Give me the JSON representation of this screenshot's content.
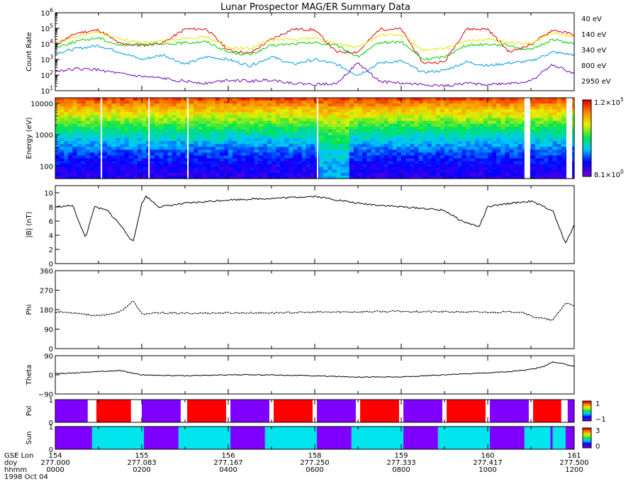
{
  "title": "Lunar Prospector MAG/ER Summary Data",
  "footer_date": "1998 Oct 04",
  "footer_rows": [
    {
      "label": "GSE Lon",
      "values": [
        "154",
        "155",
        "156",
        "158",
        "159",
        "160",
        "161"
      ]
    },
    {
      "label": "doy",
      "values": [
        "277.000",
        "277.083",
        "277.167",
        "277.250",
        "277.333",
        "277.417",
        "277.500"
      ]
    },
    {
      "label": "hhmm",
      "values": [
        "0000",
        "0200",
        "0400",
        "0600",
        "0800",
        "1000",
        "1200"
      ]
    }
  ],
  "chart_data": [
    {
      "id": "count-rate",
      "type": "line",
      "ylabel": "Count Rate",
      "yscale": "log",
      "ylim": [
        10,
        1000000
      ],
      "yticks": [
        {
          "v": 10,
          "t": "10",
          "e": "1"
        },
        {
          "v": 100,
          "t": "10",
          "e": "2"
        },
        {
          "v": 1000,
          "t": "10",
          "e": "3"
        },
        {
          "v": 10000,
          "t": "10",
          "e": "4"
        },
        {
          "v": 100000,
          "t": "10",
          "e": "5"
        },
        {
          "v": 1000000,
          "t": "10",
          "e": "6"
        }
      ],
      "x": [
        0,
        0.5,
        1.0,
        1.5,
        2.0,
        2.5,
        3.0,
        3.5,
        4.0,
        4.5,
        5.0,
        5.5,
        6.0,
        6.5,
        7.0,
        7.5,
        8.0,
        8.5,
        9.0,
        9.5,
        10.0,
        10.5,
        11.0,
        11.5,
        12.0
      ],
      "series": [
        {
          "name": "40 eV",
          "color": "#e00000",
          "values": [
            9000,
            50000,
            80000,
            10000,
            8000,
            12000,
            90000,
            90000,
            4000,
            2500,
            20000,
            90000,
            80000,
            3000,
            3000,
            90000,
            90000,
            600,
            700,
            90000,
            90000,
            3000,
            9000,
            80000,
            40000
          ]
        },
        {
          "name": "140 eV",
          "color": "#e6e600",
          "values": [
            12000,
            30000,
            60000,
            20000,
            12000,
            15000,
            25000,
            28000,
            6000,
            5000,
            18000,
            20000,
            25000,
            10000,
            6000,
            35000,
            40000,
            4000,
            5000,
            15000,
            20000,
            12000,
            10000,
            50000,
            30000
          ]
        },
        {
          "name": "340 eV",
          "color": "#00cc00",
          "values": [
            6000,
            15000,
            25000,
            8000,
            10000,
            9000,
            12000,
            14000,
            3000,
            2000,
            8000,
            10000,
            12000,
            8000,
            1500,
            12000,
            14000,
            1000,
            1500,
            8000,
            10000,
            8000,
            4000,
            20000,
            10000
          ]
        },
        {
          "name": "800 eV",
          "color": "#0099dd",
          "values": [
            2500,
            5000,
            8000,
            3000,
            1000,
            2000,
            500,
            1500,
            1000,
            400,
            1500,
            500,
            1000,
            500,
            100,
            600,
            800,
            150,
            200,
            700,
            400,
            600,
            800,
            3000,
            2000
          ]
        },
        {
          "name": "2950 eV",
          "color": "#7700bb",
          "values": [
            180,
            250,
            220,
            120,
            80,
            60,
            40,
            30,
            50,
            40,
            50,
            30,
            25,
            30,
            600,
            40,
            30,
            25,
            20,
            30,
            25,
            30,
            40,
            500,
            120
          ]
        }
      ]
    },
    {
      "id": "energy-spectrogram",
      "type": "heatmap",
      "ylabel": "Energy (eV)",
      "yscale": "log",
      "ylim": [
        40,
        15000
      ],
      "yticks": [
        {
          "v": 100,
          "t": "100"
        },
        {
          "v": 1000,
          "t": "1000"
        },
        {
          "v": 10000,
          "t": "10000"
        }
      ],
      "colorbar_max": {
        "t": "1.2×10",
        "e": "5"
      },
      "colorbar_min": {
        "t": "8.1×10",
        "e": "0"
      },
      "gaps_hours": [
        1.05,
        2.15,
        3.05,
        6.05,
        10.85,
        11.82
      ]
    },
    {
      "id": "b-magnitude",
      "type": "line",
      "ylabel": "|B| (nT)",
      "ylim": [
        0,
        11
      ],
      "yticks": [
        {
          "v": 0,
          "t": "0"
        },
        {
          "v": 2,
          "t": "2"
        },
        {
          "v": 4,
          "t": "4"
        },
        {
          "v": 6,
          "t": "6"
        },
        {
          "v": 8,
          "t": "8"
        },
        {
          "v": 10,
          "t": "10"
        }
      ],
      "x": [
        0,
        0.4,
        0.7,
        0.9,
        1.2,
        1.5,
        1.8,
        2.0,
        2.1,
        2.4,
        3.0,
        4.0,
        5.0,
        6.0,
        7.0,
        8.0,
        8.5,
        9.0,
        9.4,
        9.8,
        10.0,
        10.5,
        11.0,
        11.5,
        11.8,
        12.0
      ],
      "values": [
        8.0,
        8.2,
        3.6,
        8.0,
        7.5,
        5.5,
        3.0,
        8.5,
        9.5,
        8.0,
        8.5,
        9.0,
        9.2,
        9.5,
        8.5,
        8.0,
        7.8,
        7.5,
        6.0,
        5.2,
        8.0,
        8.5,
        8.8,
        7.5,
        2.8,
        5.5
      ]
    },
    {
      "id": "phi",
      "type": "line",
      "ylabel": "Phi",
      "ylim": [
        0,
        360
      ],
      "yticks": [
        {
          "v": 0,
          "t": "0"
        },
        {
          "v": 90,
          "t": "90"
        },
        {
          "v": 180,
          "t": "180"
        },
        {
          "v": 270,
          "t": "270"
        },
        {
          "v": 360,
          "t": "360"
        }
      ],
      "x": [
        0,
        0.5,
        1.0,
        1.5,
        1.8,
        2.0,
        2.5,
        3.0,
        4.0,
        5.0,
        6.0,
        7.0,
        8.0,
        9.0,
        10.0,
        10.8,
        11.0,
        11.5,
        11.8,
        12.0
      ],
      "values": [
        170,
        165,
        150,
        170,
        220,
        160,
        165,
        163,
        165,
        165,
        168,
        170,
        172,
        170,
        168,
        170,
        150,
        130,
        210,
        200
      ]
    },
    {
      "id": "theta",
      "type": "line",
      "ylabel": "Theta",
      "ylim": [
        -90,
        90
      ],
      "yticks": [
        {
          "v": -90,
          "t": "−90"
        },
        {
          "v": 0,
          "t": "0"
        },
        {
          "v": 90,
          "t": "90"
        }
      ],
      "x": [
        0,
        0.5,
        0.9,
        1.5,
        2.0,
        3.0,
        4.0,
        5.0,
        6.0,
        7.0,
        8.0,
        9.0,
        10.0,
        10.5,
        11.0,
        11.3,
        11.5,
        11.8,
        12.0
      ],
      "values": [
        5,
        10,
        15,
        20,
        0,
        -5,
        0,
        0,
        -5,
        -10,
        -10,
        0,
        10,
        15,
        25,
        40,
        60,
        50,
        40
      ]
    },
    {
      "id": "pol",
      "type": "bar",
      "ylabel": "Pol",
      "ylim": [
        0,
        1
      ],
      "yticks": [
        {
          "v": 0,
          "t": "0"
        },
        {
          "v": 1,
          "t": "1"
        }
      ],
      "colorbar_max": "1",
      "colorbar_min": "−1",
      "segments": [
        {
          "start": 0.0,
          "end": 0.75,
          "value": -1
        },
        {
          "start": 0.95,
          "end": 1.75,
          "value": 1
        },
        {
          "start": 2.0,
          "end": 2.9,
          "value": -1
        },
        {
          "start": 3.05,
          "end": 3.95,
          "value": 1
        },
        {
          "start": 4.05,
          "end": 4.95,
          "value": -1
        },
        {
          "start": 5.05,
          "end": 5.95,
          "value": 1
        },
        {
          "start": 6.05,
          "end": 6.95,
          "value": -1
        },
        {
          "start": 7.05,
          "end": 7.95,
          "value": 1
        },
        {
          "start": 8.05,
          "end": 8.95,
          "value": -1
        },
        {
          "start": 9.05,
          "end": 9.95,
          "value": 1
        },
        {
          "start": 10.05,
          "end": 10.95,
          "value": -1
        },
        {
          "start": 11.05,
          "end": 11.7,
          "value": 1
        },
        {
          "start": 11.85,
          "end": 12.0,
          "value": -1
        }
      ]
    },
    {
      "id": "sun",
      "type": "bar",
      "ylabel": "Sun",
      "ylim": [
        0,
        1
      ],
      "yticks": [
        {
          "v": 0,
          "t": "0"
        },
        {
          "v": 1,
          "t": "1"
        }
      ],
      "colorbar_max": "3",
      "colorbar_min": "0",
      "segments": [
        {
          "start": 0.0,
          "end": 0.85,
          "value": 0
        },
        {
          "start": 0.85,
          "end": 2.05,
          "value": 3
        },
        {
          "start": 2.05,
          "end": 2.85,
          "value": 0
        },
        {
          "start": 2.85,
          "end": 4.05,
          "value": 3
        },
        {
          "start": 4.05,
          "end": 4.85,
          "value": 0
        },
        {
          "start": 4.85,
          "end": 6.05,
          "value": 3
        },
        {
          "start": 6.05,
          "end": 6.85,
          "value": 0
        },
        {
          "start": 6.85,
          "end": 8.05,
          "value": 3
        },
        {
          "start": 8.05,
          "end": 8.85,
          "value": 0
        },
        {
          "start": 8.85,
          "end": 10.05,
          "value": 3
        },
        {
          "start": 10.05,
          "end": 10.85,
          "value": 0
        },
        {
          "start": 10.85,
          "end": 11.45,
          "value": 3
        },
        {
          "start": 11.45,
          "end": 11.5,
          "value": 0
        },
        {
          "start": 11.5,
          "end": 11.8,
          "value": 3
        },
        {
          "start": 11.8,
          "end": 12.0,
          "value": 0
        }
      ]
    }
  ]
}
